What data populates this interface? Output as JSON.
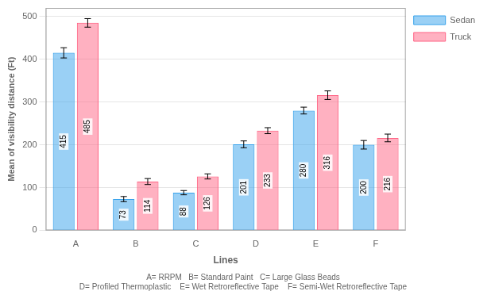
{
  "chart_data": {
    "type": "bar",
    "xlabel": "Lines",
    "ylabel": "Mean of visibility distance (Ft)",
    "categories": [
      "A",
      "B",
      "C",
      "D",
      "E",
      "F"
    ],
    "series": [
      {
        "name": "Sedan",
        "values": [
          415,
          73,
          88,
          201,
          280,
          200
        ],
        "errors": [
          12,
          6,
          5,
          8,
          8,
          10
        ]
      },
      {
        "name": "Truck",
        "values": [
          485,
          114,
          126,
          233,
          316,
          216
        ],
        "errors": [
          10,
          7,
          6,
          7,
          10,
          9
        ]
      }
    ],
    "ylim": [
      0,
      520
    ],
    "yticks": [
      0,
      100,
      200,
      300,
      400,
      500
    ],
    "grid": true,
    "legend": "right",
    "data_labels": true,
    "annotations": [
      "A= RRPM   B= Standard Paint   C= Large Glass Beads",
      "D= Profiled Thermoplastic    E= Wet Retroreflective Tape    F= Semi-Wet Retroreflective Tape"
    ]
  }
}
